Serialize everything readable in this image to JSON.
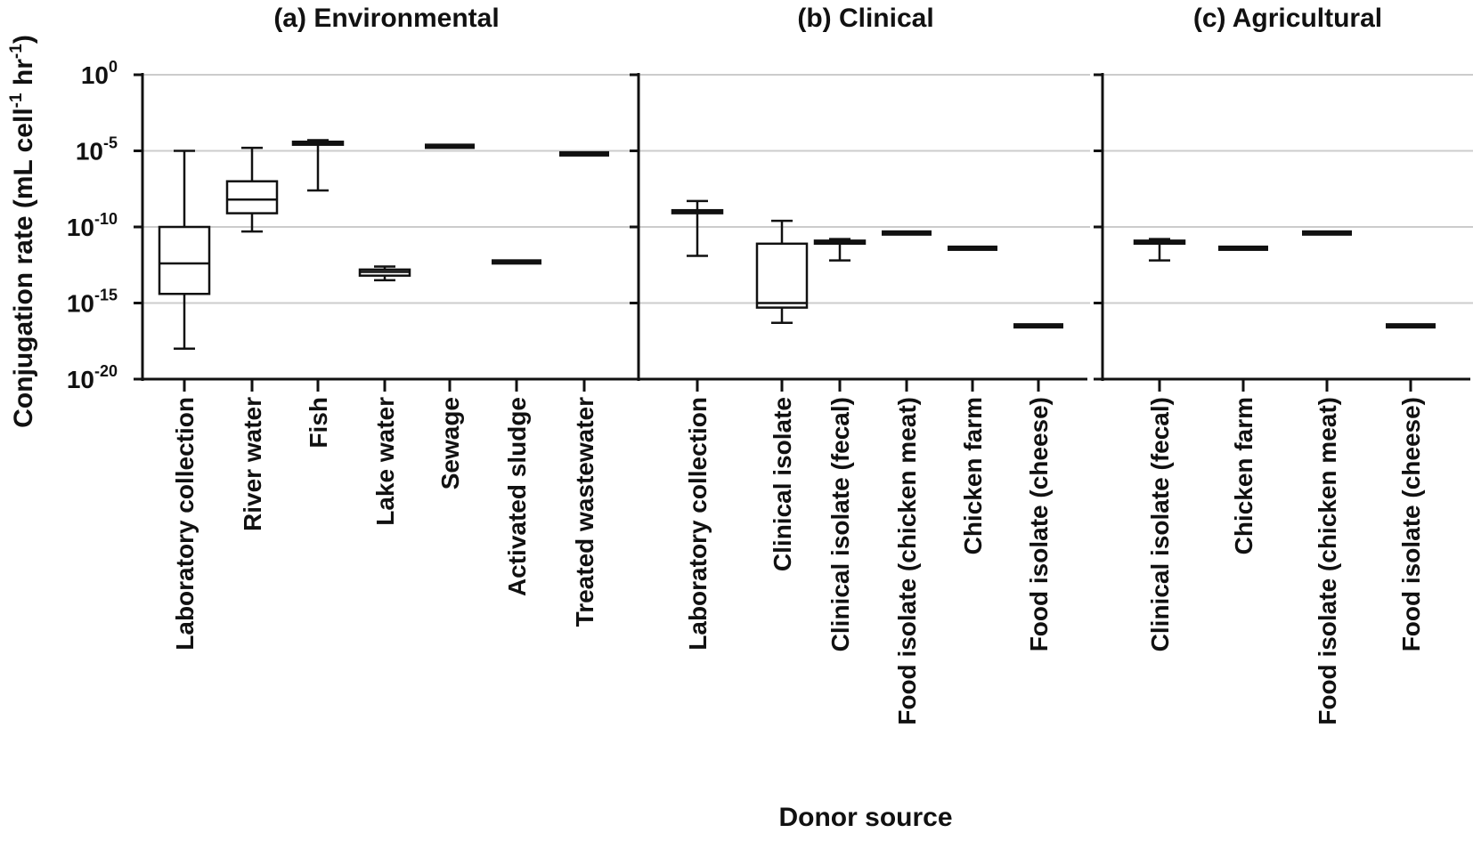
{
  "figure": {
    "ylabel_main": "Conjugation rate (mL cell",
    "ylabel_sup1": "-1",
    "ylabel_mid": " hr",
    "ylabel_sup2": "-1",
    "ylabel_end": ")",
    "xlabel": "Donor source",
    "colors": {
      "axis": "#111111",
      "grid": "#cccccc",
      "box_fill": "#ffffff"
    }
  },
  "chart_data": {
    "type": "box",
    "yscale": "log10",
    "ylim_exponent": [
      -20,
      0
    ],
    "yticks": [
      {
        "base": "10",
        "exp": "0",
        "value": 0
      },
      {
        "base": "10",
        "exp": "-5",
        "value": -5
      },
      {
        "base": "10",
        "exp": "-10",
        "value": -10
      },
      {
        "base": "10",
        "exp": "-15",
        "value": -15
      },
      {
        "base": "10",
        "exp": "-20",
        "value": -20
      }
    ],
    "panels": [
      {
        "title": "(a) Environmental",
        "categories": [
          {
            "label": "Laboratory collection",
            "min": -18,
            "q1": -14.4,
            "median": -12.4,
            "q3": -10,
            "max": -5
          },
          {
            "label": "River water",
            "min": -10.3,
            "q1": -9.1,
            "median": -8.2,
            "q3": -7,
            "max": -4.8
          },
          {
            "label": "Fish",
            "min": -7.6,
            "q1": -4.6,
            "median": -4.5,
            "q3": -4.4,
            "max": -4.3
          },
          {
            "label": "Lake water",
            "min": -13.5,
            "q1": -13.2,
            "median": -12.95,
            "q3": -12.8,
            "max": -12.6
          },
          {
            "label": "Sewage",
            "min": -4.7,
            "q1": -4.7,
            "median": -4.7,
            "q3": -4.7,
            "max": -4.7
          },
          {
            "label": "Activated sludge",
            "min": -12.3,
            "q1": -12.3,
            "median": -12.3,
            "q3": -12.3,
            "max": -12.3
          },
          {
            "label": "Treated wastewater",
            "min": -5.2,
            "q1": -5.2,
            "median": -5.2,
            "q3": -5.2,
            "max": -5.2
          }
        ]
      },
      {
        "title": "(b) Clinical",
        "categories": [
          {
            "label": "Laboratory collection",
            "min": -11.9,
            "q1": -9.1,
            "median": -9.0,
            "q3": -8.9,
            "max": -8.3
          },
          {
            "label": "Clinical isolate",
            "min": -16.3,
            "q1": -15.3,
            "median": -15.0,
            "q3": -11.1,
            "max": -9.6
          },
          {
            "label": "Clinical isolate (fecal)",
            "min": -12.2,
            "q1": -11.1,
            "median": -11.0,
            "q3": -10.9,
            "max": -10.8
          },
          {
            "label": "Food isolate (chicken meat)",
            "min": -10.4,
            "q1": -10.4,
            "median": -10.4,
            "q3": -10.4,
            "max": -10.4
          },
          {
            "label": "Chicken farm",
            "min": -11.4,
            "q1": -11.4,
            "median": -11.4,
            "q3": -11.4,
            "max": -11.4
          },
          {
            "label": "Food isolate (cheese)",
            "min": -16.5,
            "q1": -16.5,
            "median": -16.5,
            "q3": -16.5,
            "max": -16.5
          }
        ]
      },
      {
        "title": "(c) Agricultural",
        "categories": [
          {
            "label": "Clinical isolate (fecal)",
            "min": -12.2,
            "q1": -11.1,
            "median": -11.0,
            "q3": -10.9,
            "max": -10.8
          },
          {
            "label": "Chicken farm",
            "min": -11.4,
            "q1": -11.4,
            "median": -11.4,
            "q3": -11.4,
            "max": -11.4
          },
          {
            "label": "Food isolate (chicken meat)",
            "min": -10.4,
            "q1": -10.4,
            "median": -10.4,
            "q3": -10.4,
            "max": -10.4
          },
          {
            "label": "Food isolate (cheese)",
            "min": -16.5,
            "q1": -16.5,
            "median": -16.5,
            "q3": -16.5,
            "max": -16.5
          }
        ]
      }
    ]
  }
}
